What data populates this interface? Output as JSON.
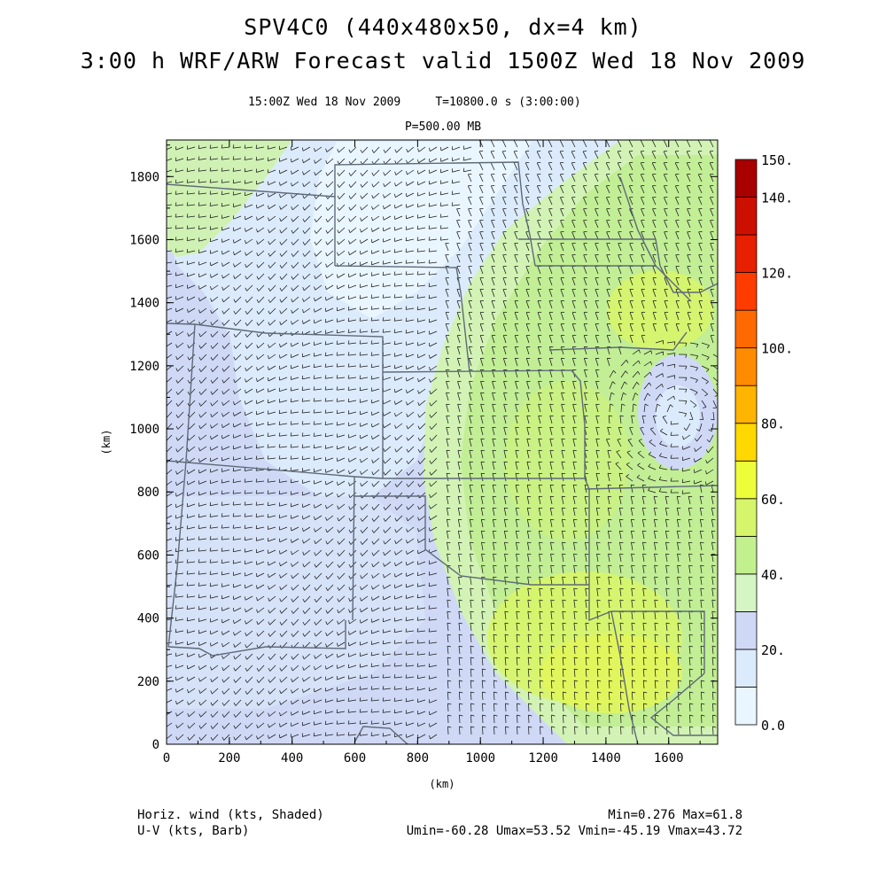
{
  "header": {
    "title_line1": "SPV4C0 (440x480x50, dx=4 km)",
    "title_line2": "3:00 h WRF/ARW Forecast valid 1500Z Wed 18 Nov 2009",
    "valid_line": "15:00Z Wed 18 Nov 2009     T=10800.0 s (3:00:00)",
    "level": "P=500.00 MB"
  },
  "chart_data": {
    "type": "heatmap",
    "xlabel": "(km)",
    "ylabel": "(km)",
    "xlim": [
      0,
      1756
    ],
    "ylim": [
      0,
      1916
    ],
    "x_ticks": [
      "0",
      "200",
      "400",
      "600",
      "800",
      "1000",
      "1200",
      "1400",
      "1600"
    ],
    "y_ticks": [
      "0",
      "200",
      "400",
      "600",
      "800",
      "1000",
      "1200",
      "1400",
      "1600",
      "1800"
    ],
    "colorbar": {
      "labels": [
        "150.",
        "140.",
        "120.",
        "100.",
        "80.",
        "60.",
        "40.",
        "20.",
        "0.0"
      ],
      "label_values": [
        150,
        140,
        120,
        100,
        80,
        60,
        40,
        20,
        0
      ],
      "bins": [
        {
          "from": 0,
          "to": 10,
          "color": "#eaf6ff"
        },
        {
          "from": 10,
          "to": 20,
          "color": "#dcebfb"
        },
        {
          "from": 20,
          "to": 30,
          "color": "#cfd9f6"
        },
        {
          "from": 30,
          "to": 40,
          "color": "#d6f5c4"
        },
        {
          "from": 40,
          "to": 50,
          "color": "#c2f08e"
        },
        {
          "from": 50,
          "to": 60,
          "color": "#d6f56a"
        },
        {
          "from": 60,
          "to": 70,
          "color": "#eefd3a"
        },
        {
          "from": 70,
          "to": 80,
          "color": "#ffd800"
        },
        {
          "from": 80,
          "to": 90,
          "color": "#ffb400"
        },
        {
          "from": 90,
          "to": 100,
          "color": "#ff8c00"
        },
        {
          "from": 100,
          "to": 110,
          "color": "#ff6a00"
        },
        {
          "from": 110,
          "to": 120,
          "color": "#ff3c00"
        },
        {
          "from": 120,
          "to": 130,
          "color": "#e62000"
        },
        {
          "from": 130,
          "to": 140,
          "color": "#cc1000"
        },
        {
          "from": 140,
          "to": 150,
          "color": "#a80000"
        }
      ]
    }
  },
  "footer": {
    "left_line1": "Horiz. wind (kts, Shaded)",
    "left_line2": "U-V (kts, Barb)",
    "right_line1": "Min=0.276 Max=61.8",
    "right_line2": "Umin=-60.28 Umax=53.52 Vmin=-45.19 Vmax=43.72"
  }
}
